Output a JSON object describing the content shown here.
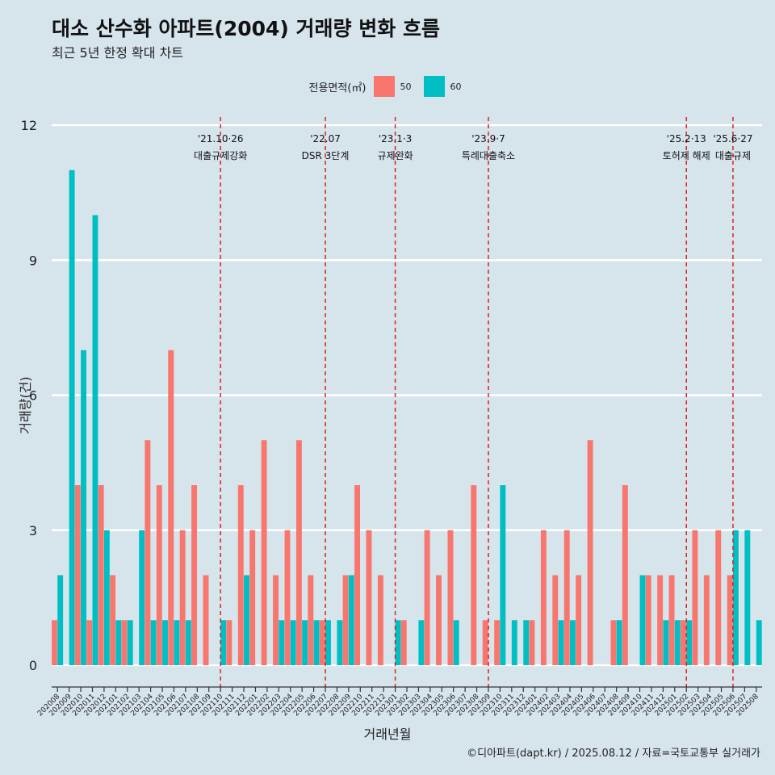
{
  "chart_data": {
    "type": "bar",
    "title": "대소 산수화 아파트(2004) 거래량 변화 흐름",
    "subtitle": "최근 5년 한정 확대 차트",
    "xlabel": "거래년월",
    "ylabel": "거래량(건)",
    "caption": "©디아파트(dapt.kr) / 2025.08.12 / 자료=국토교통부 실거래가",
    "legend_title": "전용면적(㎡)",
    "legend_position": "top",
    "ylim": [
      0,
      12
    ],
    "yticks": [
      0,
      3,
      6,
      9,
      12
    ],
    "grid": true,
    "categories": [
      "202008",
      "202009",
      "202010",
      "202011",
      "202012",
      "202101",
      "202102",
      "202103",
      "202104",
      "202105",
      "202106",
      "202107",
      "202108",
      "202109",
      "202110",
      "202111",
      "202112",
      "202201",
      "202202",
      "202203",
      "202204",
      "202205",
      "202206",
      "202207",
      "202208",
      "202209",
      "202210",
      "202211",
      "202212",
      "202301",
      "202302",
      "202303",
      "202304",
      "202305",
      "202306",
      "202307",
      "202308",
      "202309",
      "202310",
      "202311",
      "202312",
      "202401",
      "202402",
      "202403",
      "202404",
      "202405",
      "202406",
      "202407",
      "202408",
      "202409",
      "202410",
      "202411",
      "202412",
      "202501",
      "202502",
      "202503",
      "202504",
      "202505",
      "202506",
      "202507",
      "202508"
    ],
    "series": [
      {
        "name": "50",
        "color": "#f8766d",
        "values": [
          1,
          0,
          4,
          1,
          4,
          2,
          1,
          0,
          5,
          4,
          7,
          3,
          4,
          2,
          0,
          1,
          4,
          3,
          5,
          2,
          3,
          5,
          2,
          1,
          0,
          2,
          4,
          3,
          2,
          0,
          1,
          0,
          3,
          2,
          3,
          0,
          4,
          1,
          1,
          0,
          0,
          1,
          3,
          2,
          3,
          2,
          5,
          0,
          1,
          4,
          0,
          2,
          2,
          2,
          1,
          3,
          2,
          3,
          2,
          0,
          0
        ]
      },
      {
        "name": "60",
        "color": "#00bfc4",
        "values": [
          2,
          11,
          7,
          10,
          3,
          1,
          1,
          3,
          1,
          1,
          1,
          1,
          0,
          0,
          1,
          0,
          2,
          0,
          0,
          1,
          1,
          1,
          1,
          1,
          1,
          2,
          0,
          0,
          0,
          1,
          0,
          1,
          0,
          0,
          1,
          0,
          0,
          0,
          4,
          1,
          1,
          0,
          0,
          1,
          1,
          0,
          0,
          0,
          1,
          0,
          2,
          0,
          1,
          1,
          1,
          0,
          0,
          0,
          3,
          3,
          1
        ]
      }
    ],
    "events": [
      {
        "at": "202110",
        "date": "'21.10·26",
        "label": "대출규제강화"
      },
      {
        "at": "202207",
        "date": "'22.07",
        "label": "DSR 3단계"
      },
      {
        "at": "202301",
        "date": "'23.1·3",
        "label": "규제완화"
      },
      {
        "at": "202309",
        "date": "'23.9·7",
        "label": "특례대출축소"
      },
      {
        "at": "202502",
        "date": "'25.2·13",
        "label": "토허제 해제"
      },
      {
        "at": "202506",
        "date": "'25.6·27",
        "label": "대출규제"
      }
    ]
  }
}
